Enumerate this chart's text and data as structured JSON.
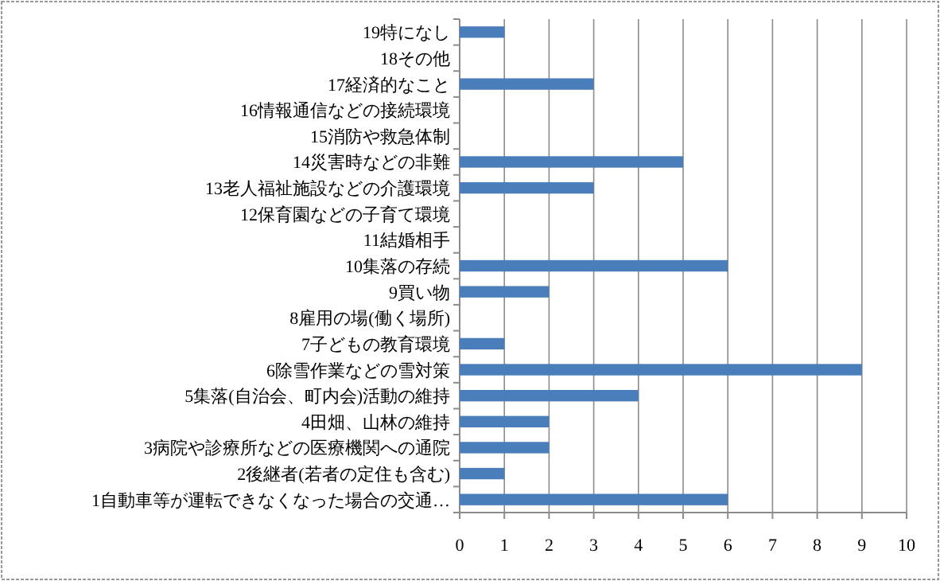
{
  "chart_data": {
    "type": "bar",
    "orientation": "horizontal",
    "categories": [
      "19特になし",
      "18その他",
      "17経済的なこと",
      "16情報通信などの接続環境",
      "15消防や救急体制",
      "14災害時などの非難",
      "13老人福祉施設などの介護環境",
      "12保育園などの子育て環境",
      "11結婚相手",
      "10集落の存続",
      "9買い物",
      "8雇用の場(働く場所)",
      "7子どもの教育環境",
      "6除雪作業などの雪対策",
      "5集落(自治会、町内会)活動の維持",
      "4田畑、山林の維持",
      "3病院や診療所などの医療機関への通院",
      "2後継者(若者の定住も含む)",
      "1自動車等が運転できなくなった場合の交通…"
    ],
    "values": [
      1,
      0,
      3,
      0,
      0,
      5,
      3,
      0,
      0,
      6,
      2,
      0,
      1,
      9,
      4,
      2,
      2,
      1,
      6
    ],
    "color": "#4a7ebb",
    "xlim": [
      0,
      10
    ],
    "xticks": [
      0,
      1,
      2,
      3,
      4,
      5,
      6,
      7,
      8,
      9,
      10
    ],
    "grid": "x"
  }
}
